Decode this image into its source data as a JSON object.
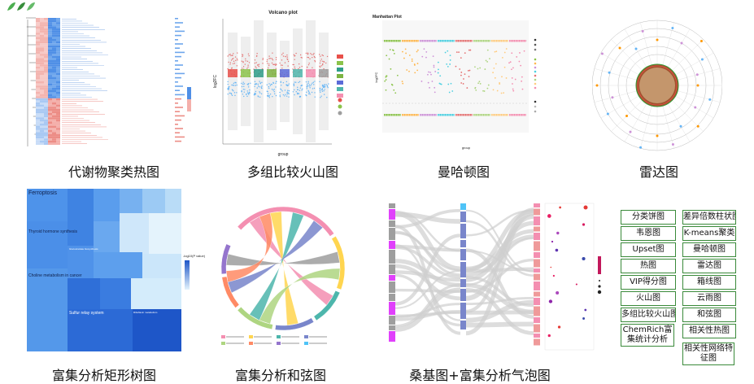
{
  "captions": {
    "heatmap": "代谢物聚类热图",
    "volcano": "多组比较火山图",
    "manhattan": "曼哈顿图",
    "radar": "雷达图",
    "treemap": "富集分析矩形树图",
    "chord": "富集分析和弦图",
    "sankey": "桑基图+富集分析气泡图"
  },
  "volcano": {
    "title": "Volcano plot",
    "xlabel": "group",
    "ylabel": "log2FC"
  },
  "manhattan": {
    "title": "Manhattan Plot",
    "xlabel": "group",
    "ylabel": "log2FC"
  },
  "treemap": {
    "labels": [
      "Ferroptosis",
      "Thyroid hormone synthesis",
      "Choline metabolism in cancer",
      "Sulfur relay system",
      "Glucosinolate biosynthesis",
      "Riboflavin metabolism"
    ],
    "legend_title": "-log10(P value)"
  },
  "grid": [
    "分类饼图",
    "差异倍数柱状图",
    "韦恩图",
    "K-means聚类",
    "Upset图",
    "曼哈顿图",
    "热图",
    "雷达图",
    "VIP得分图",
    "箱线图",
    "火山图",
    "云雨图",
    "多组比较火山图",
    "和弦图",
    "ChemRich富集统计分析",
    "相关性热图",
    "",
    "相关性网络特征图"
  ],
  "colors": {
    "chip_border": "#3a8a3a",
    "heat_red": "#e8504a",
    "heat_blue": "#3d7fe0"
  }
}
